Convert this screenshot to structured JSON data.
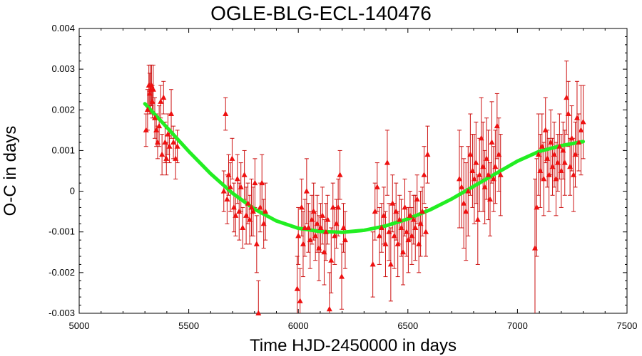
{
  "chart_data": {
    "type": "scatter",
    "title": "OGLE-BLG-ECL-140476",
    "xlabel": "Time HJD-2450000 in days",
    "ylabel": "O-C in days",
    "xlim": [
      5000,
      7500
    ],
    "ylim": [
      -0.003,
      0.004
    ],
    "x_ticks": [
      5000,
      5500,
      6000,
      6500,
      7000,
      7500
    ],
    "x_tick_labels": [
      "5000",
      "5500",
      "6000",
      "6500",
      "7000",
      "7500"
    ],
    "y_ticks": [
      -0.003,
      -0.002,
      -0.001,
      0,
      0.001,
      0.002,
      0.003,
      0.004
    ],
    "y_tick_labels": [
      "-0.003",
      "-0.002",
      "-0.001",
      "0",
      "0.001",
      "0.002",
      "0.003",
      "0.004"
    ],
    "grid": false,
    "legend": false,
    "colors": {
      "points": "#ee1111",
      "error_bars": "#cc1111",
      "fit": "#22ee22"
    },
    "series": [
      {
        "kind": "points-with-error-bars",
        "marker": "triangle",
        "x": [
          5305,
          5312,
          5318,
          5322,
          5326,
          5330,
          5334,
          5338,
          5345,
          5352,
          5358,
          5365,
          5372,
          5378,
          5385,
          5392,
          5398,
          5405,
          5412,
          5420,
          5430,
          5440,
          5448,
          5660,
          5668,
          5675,
          5682,
          5690,
          5698,
          5706,
          5714,
          5722,
          5730,
          5738,
          5746,
          5754,
          5762,
          5770,
          5778,
          5786,
          5794,
          5802,
          5810,
          5818,
          5826,
          5834,
          5842,
          5850,
          5995,
          6000,
          6008,
          6015,
          6022,
          6030,
          6038,
          6046,
          6054,
          6062,
          6070,
          6078,
          6086,
          6094,
          6102,
          6110,
          6118,
          6126,
          6134,
          6142,
          6150,
          6158,
          6166,
          6174,
          6182,
          6190,
          6198,
          6206,
          6214,
          6340,
          6350,
          6360,
          6370,
          6380,
          6390,
          6398,
          6406,
          6414,
          6422,
          6430,
          6438,
          6446,
          6454,
          6462,
          6470,
          6478,
          6486,
          6494,
          6502,
          6510,
          6518,
          6526,
          6534,
          6542,
          6550,
          6558,
          6566,
          6574,
          6582,
          6590,
          6735,
          6745,
          6755,
          6765,
          6775,
          6785,
          6795,
          6803,
          6811,
          6819,
          6827,
          6835,
          6843,
          6851,
          6859,
          6867,
          6875,
          6883,
          6891,
          6899,
          6907,
          6915,
          6923,
          7080,
          7088,
          7096,
          7104,
          7112,
          7120,
          7128,
          7136,
          7144,
          7152,
          7160,
          7168,
          7176,
          7184,
          7192,
          7200,
          7208,
          7216,
          7224,
          7232,
          7240,
          7248,
          7256,
          7264,
          7272,
          7280,
          7290,
          7300
        ],
        "y": [
          0.0015,
          0.002,
          0.0026,
          0.0024,
          0.0025,
          0.0026,
          0.0022,
          0.0025,
          0.0018,
          0.0015,
          0.0012,
          0.0016,
          0.0022,
          0.0009,
          0.0023,
          0.0012,
          0.0008,
          0.0014,
          0.0011,
          0.0019,
          0.0012,
          0.0008,
          0.0011,
          0.0,
          0.0019,
          -0.0002,
          0.0004,
          0.0001,
          0.0008,
          -0.0004,
          -0.0006,
          0.0003,
          -0.0005,
          0.0001,
          -0.0009,
          0.0004,
          -0.0006,
          -0.0003,
          -0.0007,
          -0.0004,
          -0.0005,
          0.0002,
          -0.0013,
          -0.003,
          -0.0004,
          0.0002,
          -0.0008,
          -0.0005,
          -0.0024,
          -0.0011,
          -0.0027,
          -0.0004,
          -0.0013,
          -0.0009,
          0.0,
          -0.0009,
          -0.0012,
          -0.0007,
          -0.0005,
          -0.0011,
          -0.0008,
          -0.0014,
          -0.0009,
          -0.0006,
          -0.0015,
          -0.001,
          -0.0007,
          -0.0029,
          -0.0017,
          -0.0004,
          -0.0011,
          -0.0008,
          -0.0004,
          0.0004,
          -0.0021,
          -0.0009,
          -0.0012,
          -0.0018,
          -0.0005,
          0.0001,
          -0.0011,
          -0.0009,
          -0.0006,
          -0.0013,
          0.0007,
          -0.001,
          -0.0018,
          -0.0003,
          -0.0011,
          -0.0005,
          -0.0013,
          -0.0007,
          -0.0009,
          -0.0015,
          -0.0004,
          -0.001,
          -0.0012,
          -0.0006,
          -0.0011,
          -0.0007,
          -0.0009,
          -0.0002,
          -0.0013,
          -0.0008,
          -0.0005,
          0.0004,
          -0.001,
          0.0009,
          0.0003,
          0.0001,
          -0.0003,
          -0.0005,
          0.0,
          0.0009,
          0.0005,
          0.0003,
          0.0007,
          -0.0007,
          0.0004,
          0.0013,
          0.0006,
          0.0001,
          0.0008,
          0.0004,
          -0.0002,
          0.0012,
          0.0003,
          0.0006,
          0.0016,
          0.0009,
          0.0004,
          -0.0014,
          -0.0004,
          0.0009,
          0.0005,
          0.0011,
          0.0003,
          0.0015,
          0.0008,
          0.0004,
          0.0012,
          0.0006,
          0.0009,
          0.0003,
          0.0007,
          0.0011,
          0.0005,
          0.001,
          0.0007,
          0.0023,
          0.0019,
          0.0006,
          0.0013,
          0.0004,
          0.0009,
          0.0018,
          0.0012,
          0.0015,
          0.0017
        ],
        "yerr": [
          0.0004,
          0.0005,
          0.0005,
          0.0005,
          0.0006,
          0.0005,
          0.0004,
          0.0006,
          0.0005,
          0.0004,
          0.0004,
          0.0005,
          0.0004,
          0.0005,
          0.0004,
          0.0005,
          0.0004,
          0.0005,
          0.0004,
          0.0006,
          0.0004,
          0.0005,
          0.0004,
          0.0005,
          0.0004,
          0.0006,
          0.0005,
          0.0006,
          0.0005,
          0.0006,
          0.0005,
          0.0006,
          0.0007,
          0.0006,
          0.0005,
          0.0006,
          0.0007,
          0.0005,
          0.0006,
          0.0007,
          0.0006,
          0.0006,
          0.0007,
          0.0008,
          0.0006,
          0.0007,
          0.0006,
          0.0007,
          0.0008,
          0.0007,
          0.0008,
          0.0007,
          0.0008,
          0.0007,
          0.0008,
          0.0006,
          0.0007,
          0.0006,
          0.0007,
          0.0006,
          0.0007,
          0.0008,
          0.0006,
          0.0007,
          0.0008,
          0.0007,
          0.0006,
          0.0009,
          0.0008,
          0.0006,
          0.0007,
          0.0006,
          0.0007,
          0.0006,
          0.0008,
          0.0006,
          0.0007,
          0.0008,
          0.0007,
          0.0006,
          0.0007,
          0.0006,
          0.0007,
          0.0008,
          0.0008,
          0.0007,
          0.0009,
          0.0007,
          0.0008,
          0.0007,
          0.0008,
          0.0006,
          0.0007,
          0.0008,
          0.0007,
          0.0006,
          0.0008,
          0.0006,
          0.0007,
          0.0006,
          0.0008,
          0.0006,
          0.0007,
          0.0008,
          0.0006,
          0.0007,
          0.0006,
          0.0007,
          0.0012,
          0.001,
          0.0011,
          0.0012,
          0.0011,
          0.001,
          0.0009,
          0.0011,
          0.001,
          0.0011,
          0.0009,
          0.001,
          0.0011,
          0.0009,
          0.001,
          0.0011,
          0.0009,
          0.001,
          0.0008,
          0.0009,
          0.0008,
          0.0009,
          0.001,
          0.0017,
          0.0012,
          0.001,
          0.0009,
          0.0008,
          0.0009,
          0.0008,
          0.0007,
          0.0009,
          0.0008,
          0.0007,
          0.0008,
          0.0009,
          0.0007,
          0.0008,
          0.0009,
          0.0007,
          0.0008,
          0.0009,
          0.0008,
          0.0007,
          0.0008,
          0.0009,
          0.0008,
          0.0009,
          0.0007,
          0.0011,
          0.0009
        ]
      },
      {
        "kind": "fit-curve",
        "x": [
          5300,
          5400,
          5500,
          5600,
          5700,
          5800,
          5900,
          6000,
          6100,
          6200,
          6300,
          6400,
          6500,
          6600,
          6700,
          6800,
          6900,
          7000,
          7100,
          7200,
          7300
        ],
        "y": [
          0.00215,
          0.00157,
          0.00098,
          0.00043,
          -5e-05,
          -0.00044,
          -0.00073,
          -0.00091,
          -0.00099,
          -0.00101,
          -0.00096,
          -0.00085,
          -0.00068,
          -0.00046,
          -0.00019,
          0.00012,
          0.00043,
          0.00074,
          0.00098,
          0.00112,
          0.00122
        ]
      }
    ]
  }
}
